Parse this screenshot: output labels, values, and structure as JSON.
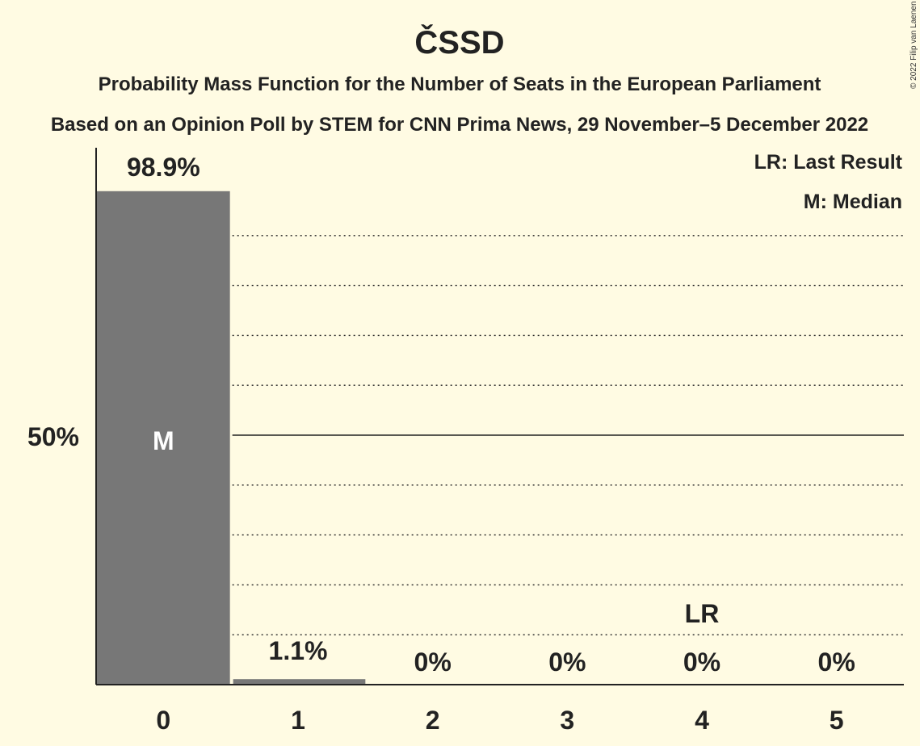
{
  "header": {
    "title": "ČSSD",
    "subtitle_1": "Probability Mass Function for the Number of Seats in the European Parliament",
    "subtitle_2": "Based on an Opinion Poll by STEM for CNN Prima News, 29 November–5 December 2022"
  },
  "legend": {
    "last_result": "LR: Last Result",
    "median": "M: Median"
  },
  "copyright": "© 2022 Filip van Laenen",
  "colors": {
    "background": "#fffbe3",
    "bar": "#777777",
    "text": "#222222",
    "median_text": "#ffffff"
  },
  "chart_data": {
    "type": "bar",
    "title": "ČSSD",
    "categories": [
      "0",
      "1",
      "2",
      "3",
      "4",
      "5"
    ],
    "values": [
      98.9,
      1.1,
      0,
      0,
      0,
      0
    ],
    "value_labels": [
      "98.9%",
      "1.1%",
      "0%",
      "0%",
      "0%",
      "0%"
    ],
    "ylim": [
      0,
      100
    ],
    "ytick_label": "50%",
    "ytick_value": 50,
    "median_category": "0",
    "median_label": "M",
    "last_result_category": "4",
    "last_result_label": "LR",
    "grid": "dotted every 10%, solid at 50%"
  }
}
